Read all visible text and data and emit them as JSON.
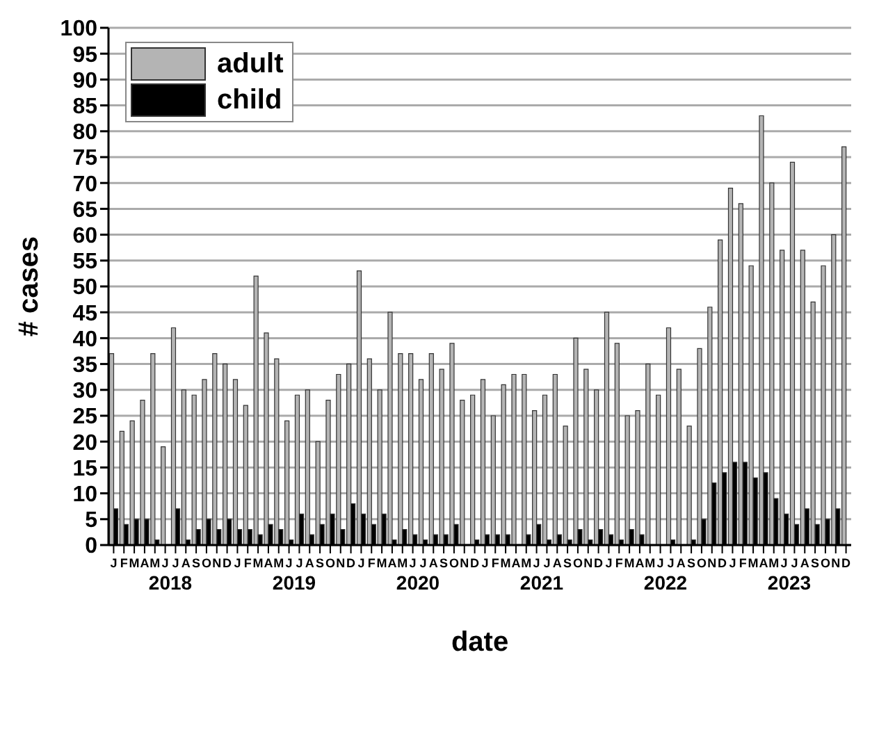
{
  "chart_data": {
    "type": "bar",
    "xlabel": "date",
    "ylabel": "# cases",
    "categories": [
      "J",
      "F",
      "M",
      "A",
      "M",
      "J",
      "J",
      "A",
      "S",
      "O",
      "N",
      "D",
      "J",
      "F",
      "M",
      "A",
      "M",
      "J",
      "J",
      "A",
      "S",
      "O",
      "N",
      "D",
      "J",
      "F",
      "M",
      "A",
      "M",
      "J",
      "J",
      "A",
      "S",
      "O",
      "N",
      "D",
      "J",
      "F",
      "M",
      "A",
      "M",
      "J",
      "J",
      "A",
      "S",
      "O",
      "N",
      "D",
      "J",
      "F",
      "M",
      "A",
      "M",
      "J",
      "J",
      "A",
      "S",
      "O",
      "N",
      "D",
      "J",
      "F",
      "M",
      "A",
      "M",
      "J",
      "J",
      "A",
      "S",
      "O",
      "N",
      "D"
    ],
    "annotations": [
      "2018",
      "2019",
      "2020",
      "2021",
      "2022",
      "2023"
    ],
    "series": [
      {
        "name": "adult",
        "color": "#b4b4b4",
        "values": [
          37,
          22,
          24,
          28,
          37,
          19,
          42,
          30,
          29,
          32,
          37,
          35,
          32,
          27,
          52,
          41,
          36,
          24,
          29,
          30,
          20,
          28,
          33,
          35,
          53,
          36,
          30,
          45,
          37,
          37,
          32,
          37,
          34,
          39,
          28,
          29,
          32,
          25,
          31,
          33,
          33,
          26,
          29,
          33,
          23,
          40,
          34,
          30,
          45,
          39,
          25,
          26,
          35,
          29,
          42,
          34,
          23,
          38,
          46,
          59,
          69,
          66,
          54,
          83,
          70,
          57,
          74,
          57,
          47,
          54,
          60,
          77
        ]
      },
      {
        "name": "child",
        "color": "#000000",
        "values": [
          7,
          4,
          5,
          5,
          1,
          0,
          7,
          1,
          3,
          5,
          3,
          5,
          3,
          3,
          2,
          4,
          3,
          1,
          6,
          2,
          4,
          6,
          3,
          8,
          6,
          4,
          6,
          1,
          3,
          2,
          1,
          2,
          2,
          4,
          0,
          1,
          2,
          2,
          2,
          0,
          2,
          4,
          1,
          2,
          1,
          3,
          1,
          3,
          2,
          1,
          3,
          2,
          0,
          0,
          1,
          0,
          1,
          5,
          12,
          14,
          16,
          16,
          13,
          14,
          9,
          6,
          4,
          7,
          4,
          5,
          7,
          null
        ]
      }
    ],
    "ylim": [
      0,
      100
    ],
    "yticks": [
      0,
      5,
      10,
      15,
      20,
      25,
      30,
      35,
      40,
      45,
      50,
      55,
      60,
      65,
      70,
      75,
      80,
      85,
      90,
      95,
      100
    ],
    "grid": "y",
    "legend": "top left"
  }
}
